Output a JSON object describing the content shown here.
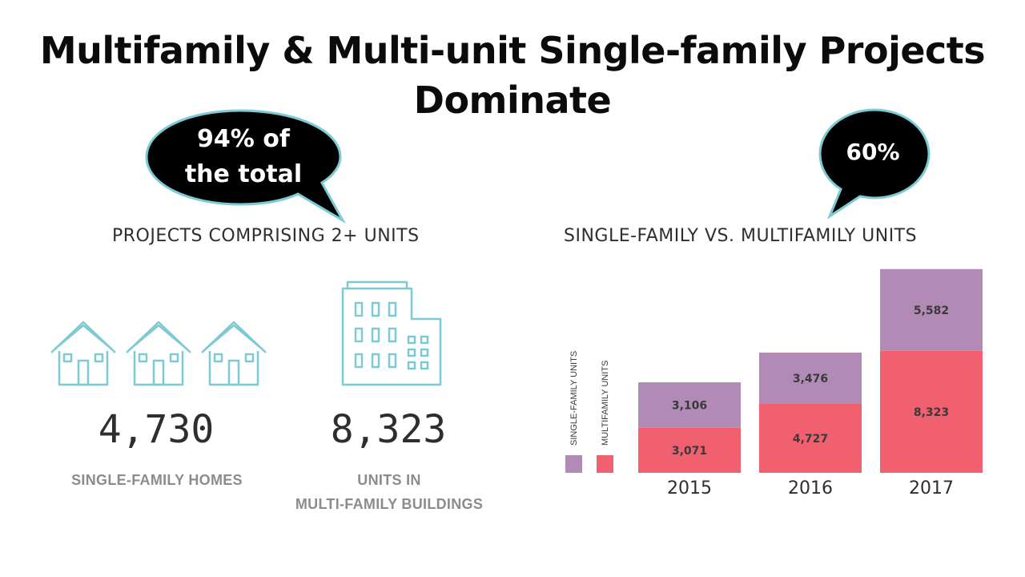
{
  "slide": {
    "title": "Multifamily & Multi-unit Single-family Projects Dominate"
  },
  "callouts": {
    "left": "94% of the total",
    "right": "60%"
  },
  "left_panel": {
    "heading": "PROJECTS COMPRISING 2+ UNITS",
    "icons": [
      "house-icon",
      "house-icon",
      "house-icon",
      "apartment-building-icon"
    ],
    "stats": [
      {
        "value": "4,730",
        "label": "SINGLE-FAMILY HOMES"
      },
      {
        "value": "8,323",
        "label_line1": "UNITS IN",
        "label_line2": "MULTI-FAMILY BUILDINGS"
      }
    ],
    "icon_color": "#7ccbd4"
  },
  "right_panel": {
    "heading": "SINGLE-FAMILY VS. MULTIFAMILY UNITS"
  },
  "chart_data": {
    "type": "bar",
    "stacked": true,
    "categories": [
      "2015",
      "2016",
      "2017"
    ],
    "series": [
      {
        "name": "MULTIFAMILY UNITS",
        "values": [
          3071,
          4727,
          8323
        ],
        "color": "#f0606f"
      },
      {
        "name": "SINGLE-FAMILY UNITS",
        "values": [
          3106,
          3476,
          5582
        ],
        "color": "#b18ab5"
      }
    ],
    "data_labels": [
      "3,071",
      "4,727",
      "8,323",
      "3,106",
      "3,476",
      "5,582"
    ],
    "ylim": [
      0,
      14000
    ],
    "legend_position": "left, vertical",
    "grid": false
  }
}
